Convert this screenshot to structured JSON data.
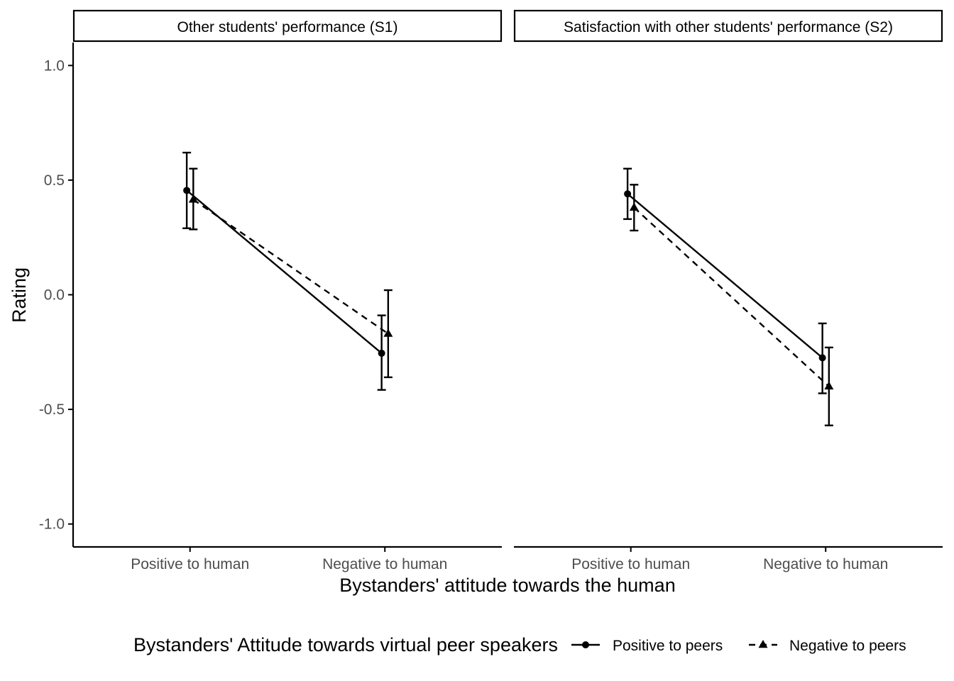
{
  "chart_data": {
    "type": "line",
    "facets": [
      {
        "title": "Other students' performance (S1)",
        "series": [
          {
            "name": "Positive to peers",
            "marker": "circle",
            "linestyle": "solid",
            "points": [
              {
                "x": "Positive to human",
                "y": 0.455,
                "ymin": 0.29,
                "ymax": 0.62
              },
              {
                "x": "Negative to human",
                "y": -0.255,
                "ymin": -0.415,
                "ymax": -0.09
              }
            ]
          },
          {
            "name": "Negative to peers",
            "marker": "triangle",
            "linestyle": "dashed",
            "points": [
              {
                "x": "Positive to human",
                "y": 0.415,
                "ymin": 0.285,
                "ymax": 0.55
              },
              {
                "x": "Negative to human",
                "y": -0.17,
                "ymin": -0.36,
                "ymax": 0.02
              }
            ]
          }
        ]
      },
      {
        "title": "Satisfaction with other students' performance (S2)",
        "series": [
          {
            "name": "Positive to peers",
            "marker": "circle",
            "linestyle": "solid",
            "points": [
              {
                "x": "Positive to human",
                "y": 0.44,
                "ymin": 0.33,
                "ymax": 0.55
              },
              {
                "x": "Negative to human",
                "y": -0.275,
                "ymin": -0.43,
                "ymax": -0.125
              }
            ]
          },
          {
            "name": "Negative to peers",
            "marker": "triangle",
            "linestyle": "dashed",
            "points": [
              {
                "x": "Positive to human",
                "y": 0.38,
                "ymin": 0.28,
                "ymax": 0.48
              },
              {
                "x": "Negative to human",
                "y": -0.4,
                "ymin": -0.57,
                "ymax": -0.23
              }
            ]
          }
        ]
      }
    ],
    "categories": [
      "Positive to human",
      "Negative to human"
    ],
    "xlabel": "Bystanders' attitude towards the human",
    "ylabel": "Rating",
    "ylim": [
      -1.1,
      1.1
    ],
    "yticks": [
      1.0,
      0.5,
      0.0,
      -0.5,
      -1.0
    ],
    "ytick_labels": [
      "1.0",
      "0.5",
      "0.0",
      "-0.5",
      "-1.0"
    ],
    "legend": {
      "title": "Bystanders' Attitude towards virtual peer speakers",
      "position": "bottom",
      "entries": [
        "Positive to peers",
        "Negative to peers"
      ]
    },
    "grid": false,
    "colors": {
      "ink": "#000000",
      "tick_text": "#4d4d4d"
    }
  }
}
